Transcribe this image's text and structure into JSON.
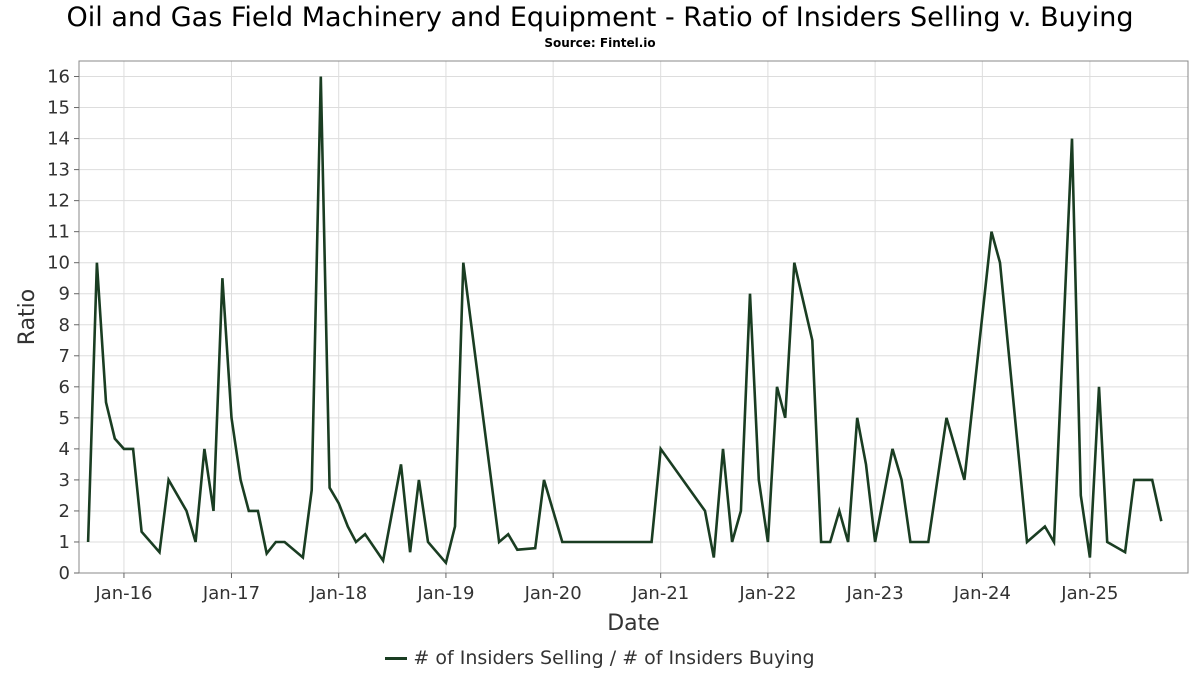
{
  "title": "Oil and Gas Field Machinery and Equipment - Ratio of Insiders Selling v. Buying",
  "subtitle": "Source: Fintel.io",
  "colors": {
    "line": "#1a3d22",
    "grid": "#dddddd",
    "frame": "#888888"
  },
  "chart_data": {
    "type": "line",
    "xlabel": "Date",
    "ylabel": "Ratio",
    "x_tick_labels": [
      "Jan-16",
      "Jan-17",
      "Jan-18",
      "Jan-19",
      "Jan-20",
      "Jan-21",
      "Jan-22",
      "Jan-23",
      "Jan-24",
      "Jan-25"
    ],
    "x_tick_dates": [
      "2016-01-01",
      "2017-01-01",
      "2018-01-01",
      "2019-01-01",
      "2020-01-01",
      "2021-01-01",
      "2022-01-01",
      "2023-01-01",
      "2024-01-01",
      "2025-01-01"
    ],
    "xlim": [
      "2015-08-01",
      "2025-12-01"
    ],
    "ylim": [
      0,
      16.5
    ],
    "y_ticks": [
      0,
      1,
      2,
      3,
      4,
      5,
      6,
      7,
      8,
      9,
      10,
      11,
      12,
      13,
      14,
      15,
      16
    ],
    "grid": true,
    "legend_position": "bottom-center",
    "series": [
      {
        "name": "# of Insiders Selling / # of Insiders Buying",
        "points": [
          [
            "2015-09-01",
            1
          ],
          [
            "2015-10-01",
            10
          ],
          [
            "2015-11-01",
            5.5
          ],
          [
            "2015-12-01",
            4.33
          ],
          [
            "2016-01-01",
            4
          ],
          [
            "2016-02-01",
            4
          ],
          [
            "2016-03-01",
            1.33
          ],
          [
            "2016-05-01",
            0.67
          ],
          [
            "2016-06-01",
            3
          ],
          [
            "2016-08-01",
            2
          ],
          [
            "2016-09-01",
            1
          ],
          [
            "2016-10-01",
            4
          ],
          [
            "2016-11-01",
            2
          ],
          [
            "2016-12-01",
            9.5
          ],
          [
            "2017-01-01",
            5
          ],
          [
            "2017-02-01",
            3
          ],
          [
            "2017-03-01",
            2
          ],
          [
            "2017-04-01",
            2
          ],
          [
            "2017-05-01",
            0.63
          ],
          [
            "2017-06-01",
            1
          ],
          [
            "2017-07-01",
            1
          ],
          [
            "2017-09-01",
            0.5
          ],
          [
            "2017-10-01",
            2.67
          ],
          [
            "2017-11-01",
            16
          ],
          [
            "2017-12-01",
            2.75
          ],
          [
            "2018-01-01",
            2.25
          ],
          [
            "2018-02-01",
            1.5
          ],
          [
            "2018-03-01",
            1
          ],
          [
            "2018-04-01",
            1.25
          ],
          [
            "2018-06-01",
            0.4
          ],
          [
            "2018-08-01",
            3.5
          ],
          [
            "2018-09-01",
            0.67
          ],
          [
            "2018-10-01",
            3
          ],
          [
            "2018-11-01",
            1
          ],
          [
            "2019-01-01",
            0.33
          ],
          [
            "2019-02-01",
            1.5
          ],
          [
            "2019-03-01",
            10
          ],
          [
            "2019-07-01",
            1
          ],
          [
            "2019-08-01",
            1.25
          ],
          [
            "2019-09-01",
            0.75
          ],
          [
            "2019-11-01",
            0.8
          ],
          [
            "2019-12-01",
            3
          ],
          [
            "2020-02-01",
            1
          ],
          [
            "2020-10-01",
            1
          ],
          [
            "2020-12-01",
            1
          ],
          [
            "2021-01-01",
            4
          ],
          [
            "2021-06-01",
            2
          ],
          [
            "2021-07-01",
            0.5
          ],
          [
            "2021-08-01",
            4
          ],
          [
            "2021-09-01",
            1
          ],
          [
            "2021-10-01",
            2
          ],
          [
            "2021-11-01",
            9
          ],
          [
            "2021-12-01",
            3
          ],
          [
            "2022-01-01",
            1
          ],
          [
            "2022-02-01",
            6
          ],
          [
            "2022-03-01",
            5
          ],
          [
            "2022-04-01",
            10
          ],
          [
            "2022-06-01",
            7.5
          ],
          [
            "2022-07-01",
            1
          ],
          [
            "2022-08-01",
            1
          ],
          [
            "2022-09-01",
            2
          ],
          [
            "2022-10-01",
            1
          ],
          [
            "2022-11-01",
            5
          ],
          [
            "2022-12-01",
            3.5
          ],
          [
            "2023-01-01",
            1
          ],
          [
            "2023-03-01",
            4
          ],
          [
            "2023-04-01",
            3
          ],
          [
            "2023-05-01",
            1
          ],
          [
            "2023-07-01",
            1
          ],
          [
            "2023-09-01",
            5
          ],
          [
            "2023-11-01",
            3
          ],
          [
            "2024-02-01",
            11
          ],
          [
            "2024-03-01",
            10
          ],
          [
            "2024-06-01",
            1
          ],
          [
            "2024-08-01",
            1.5
          ],
          [
            "2024-09-01",
            1
          ],
          [
            "2024-11-01",
            14
          ],
          [
            "2024-12-01",
            2.5
          ],
          [
            "2025-01-01",
            0.5
          ],
          [
            "2025-02-01",
            6
          ],
          [
            "2025-03-01",
            1
          ],
          [
            "2025-05-01",
            0.67
          ],
          [
            "2025-06-01",
            3
          ],
          [
            "2025-08-01",
            3
          ],
          [
            "2025-09-01",
            1.67
          ]
        ]
      }
    ]
  }
}
